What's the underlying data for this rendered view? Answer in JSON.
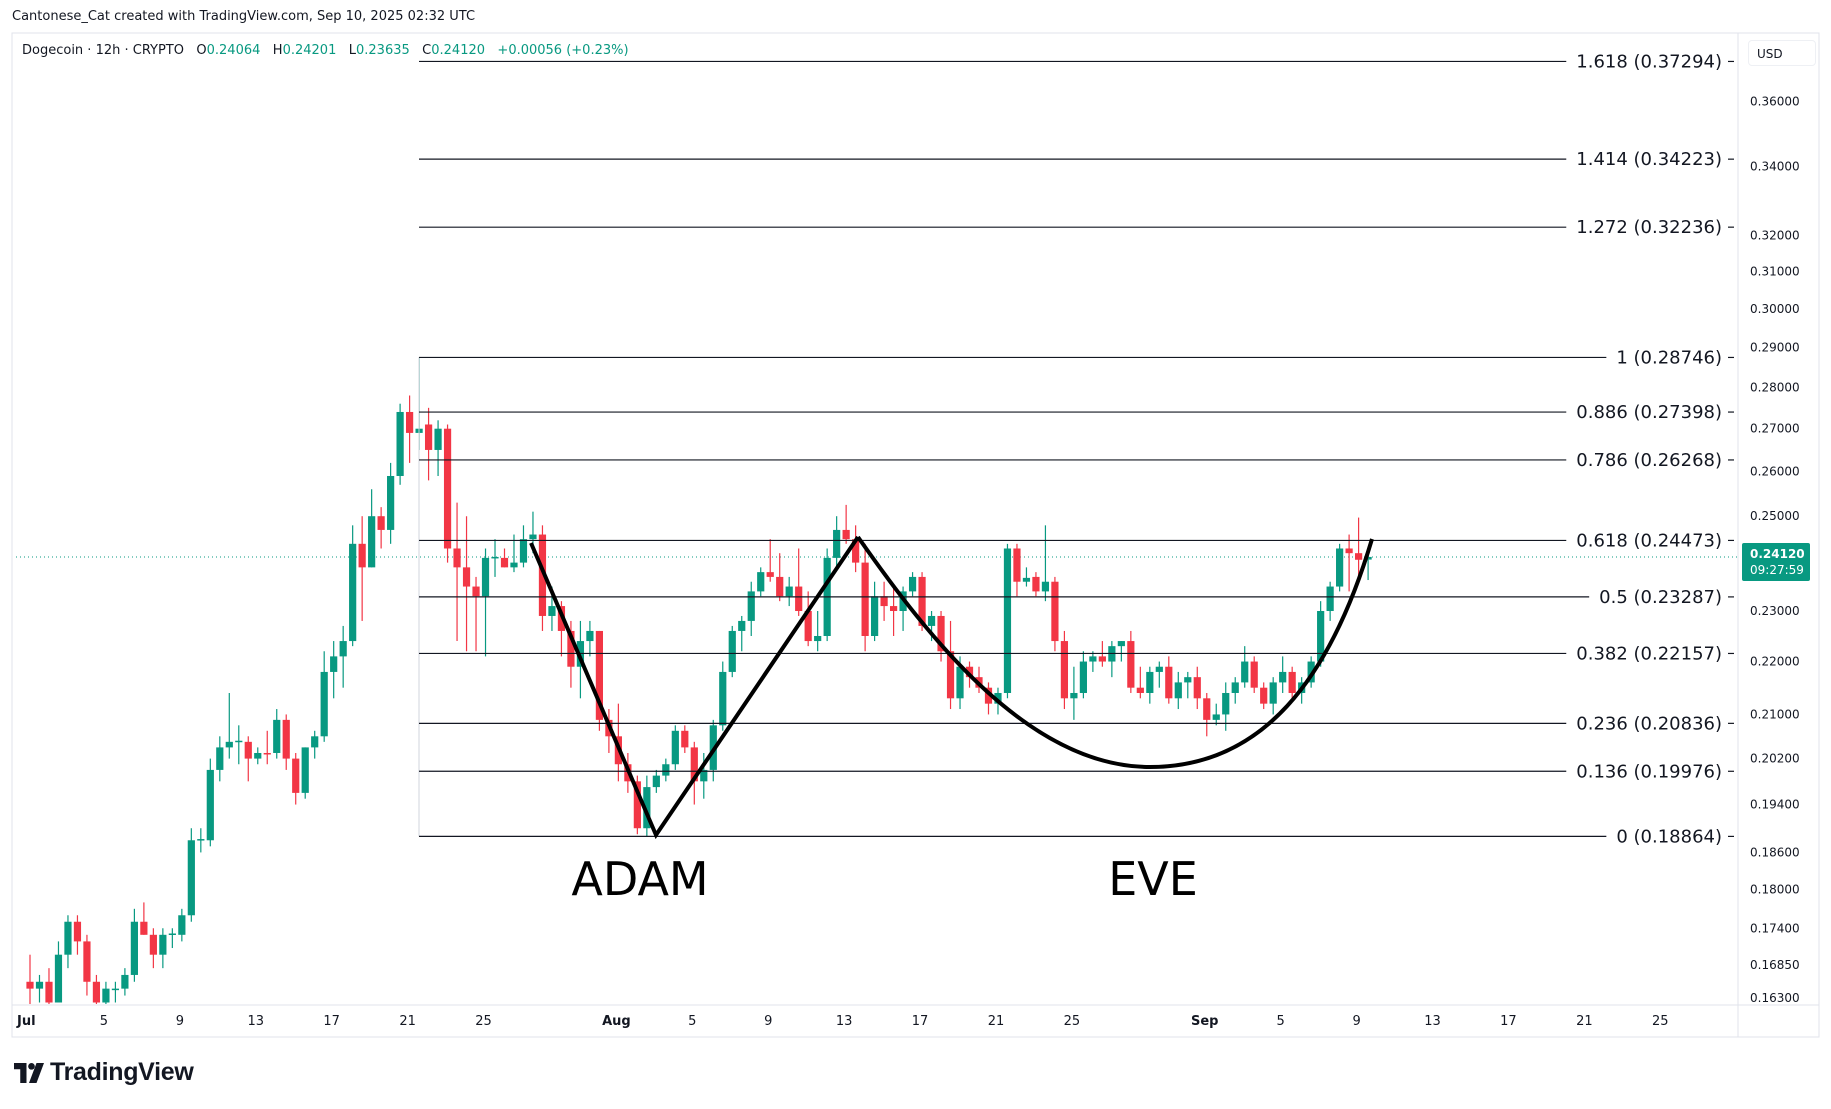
{
  "attribution": "Cantonese_Cat created with TradingView.com, Sep 10, 2025 02:32 UTC",
  "legend": {
    "symbol": "Dogecoin · 12h · CRYPTO",
    "o_label": "O",
    "o": "0.24064",
    "h_label": "H",
    "h": "0.24201",
    "l_label": "L",
    "l": "0.23635",
    "c_label": "C",
    "c": "0.24120",
    "change": "+0.00056 (+0.23%)"
  },
  "currency": "USD",
  "current_price": {
    "price": "0.24120",
    "countdown": "09:27:59",
    "value": 0.2412
  },
  "logo_text": "TradingView",
  "colors": {
    "up": "#089981",
    "down": "#f23645",
    "line": "#131722",
    "grid": "#e0e3eb"
  },
  "chart_data": {
    "type": "candlestick",
    "title": "Dogecoin · 12h · CRYPTO",
    "scale": "log",
    "ylim": [
      0.163,
      0.375
    ],
    "start_date": "Jul 1, 2025",
    "interval": "12h",
    "candles_ohlc": [
      [
        0.166,
        0.17,
        0.162,
        0.165
      ],
      [
        0.165,
        0.167,
        0.163,
        0.166
      ],
      [
        0.166,
        0.168,
        0.162,
        0.163
      ],
      [
        0.163,
        0.172,
        0.163,
        0.17
      ],
      [
        0.17,
        0.176,
        0.168,
        0.175
      ],
      [
        0.175,
        0.176,
        0.17,
        0.172
      ],
      [
        0.172,
        0.173,
        0.164,
        0.166
      ],
      [
        0.166,
        0.167,
        0.162,
        0.163
      ],
      [
        0.163,
        0.166,
        0.162,
        0.165
      ],
      [
        0.165,
        0.166,
        0.163,
        0.165
      ],
      [
        0.165,
        0.168,
        0.164,
        0.167
      ],
      [
        0.167,
        0.177,
        0.166,
        0.175
      ],
      [
        0.175,
        0.178,
        0.173,
        0.173
      ],
      [
        0.173,
        0.174,
        0.168,
        0.17
      ],
      [
        0.17,
        0.174,
        0.168,
        0.173
      ],
      [
        0.173,
        0.174,
        0.171,
        0.1732
      ],
      [
        0.173,
        0.177,
        0.172,
        0.176
      ],
      [
        0.176,
        0.19,
        0.175,
        0.188
      ],
      [
        0.188,
        0.19,
        0.186,
        0.1882
      ],
      [
        0.188,
        0.202,
        0.187,
        0.2
      ],
      [
        0.2,
        0.206,
        0.198,
        0.204
      ],
      [
        0.204,
        0.214,
        0.202,
        0.205
      ],
      [
        0.205,
        0.208,
        0.201,
        0.2052
      ],
      [
        0.205,
        0.206,
        0.198,
        0.202
      ],
      [
        0.202,
        0.204,
        0.201,
        0.203
      ],
      [
        0.203,
        0.207,
        0.201,
        0.2028
      ],
      [
        0.203,
        0.211,
        0.202,
        0.209
      ],
      [
        0.209,
        0.21,
        0.2,
        0.202
      ],
      [
        0.202,
        0.203,
        0.194,
        0.196
      ],
      [
        0.196,
        0.204,
        0.195,
        0.204
      ],
      [
        0.204,
        0.207,
        0.202,
        0.206
      ],
      [
        0.206,
        0.222,
        0.205,
        0.218
      ],
      [
        0.218,
        0.224,
        0.213,
        0.221
      ],
      [
        0.221,
        0.227,
        0.215,
        0.224
      ],
      [
        0.224,
        0.248,
        0.223,
        0.244
      ],
      [
        0.244,
        0.25,
        0.228,
        0.239
      ],
      [
        0.239,
        0.256,
        0.239,
        0.25
      ],
      [
        0.25,
        0.252,
        0.243,
        0.247
      ],
      [
        0.247,
        0.262,
        0.244,
        0.259
      ],
      [
        0.259,
        0.276,
        0.257,
        0.274
      ],
      [
        0.274,
        0.278,
        0.262,
        0.269
      ],
      [
        0.269,
        0.28746,
        0.265,
        0.27
      ],
      [
        0.271,
        0.275,
        0.258,
        0.265
      ],
      [
        0.265,
        0.272,
        0.259,
        0.27
      ],
      [
        0.27,
        0.271,
        0.24,
        0.243
      ],
      [
        0.243,
        0.253,
        0.224,
        0.239
      ],
      [
        0.239,
        0.25,
        0.222,
        0.235
      ],
      [
        0.235,
        0.237,
        0.222,
        0.233
      ],
      [
        0.233,
        0.243,
        0.221,
        0.241
      ],
      [
        0.241,
        0.245,
        0.237,
        0.2412
      ],
      [
        0.241,
        0.243,
        0.239,
        0.239
      ],
      [
        0.239,
        0.246,
        0.238,
        0.24
      ],
      [
        0.24,
        0.248,
        0.239,
        0.245
      ],
      [
        0.245,
        0.251,
        0.242,
        0.246
      ],
      [
        0.246,
        0.248,
        0.226,
        0.229
      ],
      [
        0.229,
        0.235,
        0.226,
        0.231
      ],
      [
        0.231,
        0.232,
        0.221,
        0.226
      ],
      [
        0.226,
        0.228,
        0.215,
        0.219
      ],
      [
        0.219,
        0.228,
        0.213,
        0.224
      ],
      [
        0.224,
        0.228,
        0.221,
        0.226
      ],
      [
        0.226,
        0.226,
        0.207,
        0.209
      ],
      [
        0.209,
        0.211,
        0.203,
        0.206
      ],
      [
        0.206,
        0.212,
        0.198,
        0.201
      ],
      [
        0.201,
        0.203,
        0.196,
        0.198
      ],
      [
        0.198,
        0.199,
        0.189,
        0.19
      ],
      [
        0.19,
        0.199,
        0.18864,
        0.197
      ],
      [
        0.197,
        0.2,
        0.196,
        0.199
      ],
      [
        0.199,
        0.202,
        0.198,
        0.201
      ],
      [
        0.201,
        0.208,
        0.2,
        0.207
      ],
      [
        0.207,
        0.208,
        0.203,
        0.204
      ],
      [
        0.204,
        0.205,
        0.194,
        0.198
      ],
      [
        0.198,
        0.203,
        0.195,
        0.2
      ],
      [
        0.2,
        0.209,
        0.198,
        0.208
      ],
      [
        0.208,
        0.22,
        0.207,
        0.218
      ],
      [
        0.218,
        0.227,
        0.217,
        0.226
      ],
      [
        0.226,
        0.229,
        0.222,
        0.228
      ],
      [
        0.228,
        0.236,
        0.225,
        0.234
      ],
      [
        0.234,
        0.239,
        0.233,
        0.238
      ],
      [
        0.238,
        0.245,
        0.236,
        0.237
      ],
      [
        0.237,
        0.242,
        0.232,
        0.233
      ],
      [
        0.233,
        0.237,
        0.231,
        0.235
      ],
      [
        0.235,
        0.243,
        0.229,
        0.23
      ],
      [
        0.23,
        0.234,
        0.223,
        0.224
      ],
      [
        0.224,
        0.23,
        0.222,
        0.225
      ],
      [
        0.225,
        0.243,
        0.224,
        0.241
      ],
      [
        0.241,
        0.25,
        0.239,
        0.247
      ],
      [
        0.247,
        0.2525,
        0.244,
        0.245
      ],
      [
        0.245,
        0.248,
        0.238,
        0.24
      ],
      [
        0.24,
        0.244,
        0.222,
        0.225
      ],
      [
        0.225,
        0.236,
        0.224,
        0.233
      ],
      [
        0.233,
        0.236,
        0.228,
        0.231
      ],
      [
        0.231,
        0.235,
        0.225,
        0.23
      ],
      [
        0.23,
        0.235,
        0.226,
        0.234
      ],
      [
        0.234,
        0.238,
        0.233,
        0.237
      ],
      [
        0.237,
        0.238,
        0.226,
        0.227
      ],
      [
        0.227,
        0.23,
        0.224,
        0.229
      ],
      [
        0.229,
        0.23,
        0.22,
        0.222
      ],
      [
        0.222,
        0.228,
        0.211,
        0.213
      ],
      [
        0.213,
        0.221,
        0.211,
        0.219
      ],
      [
        0.219,
        0.22,
        0.215,
        0.217
      ],
      [
        0.217,
        0.219,
        0.214,
        0.215
      ],
      [
        0.215,
        0.216,
        0.21,
        0.212
      ],
      [
        0.212,
        0.215,
        0.21,
        0.214
      ],
      [
        0.214,
        0.244,
        0.213,
        0.243
      ],
      [
        0.243,
        0.244,
        0.233,
        0.236
      ],
      [
        0.236,
        0.239,
        0.235,
        0.2368
      ],
      [
        0.237,
        0.238,
        0.233,
        0.234
      ],
      [
        0.234,
        0.248,
        0.232,
        0.236
      ],
      [
        0.236,
        0.237,
        0.222,
        0.224
      ],
      [
        0.224,
        0.226,
        0.211,
        0.213
      ],
      [
        0.213,
        0.219,
        0.209,
        0.214
      ],
      [
        0.214,
        0.222,
        0.213,
        0.22
      ],
      [
        0.22,
        0.222,
        0.218,
        0.221
      ],
      [
        0.221,
        0.224,
        0.219,
        0.22
      ],
      [
        0.22,
        0.224,
        0.217,
        0.223
      ],
      [
        0.223,
        0.224,
        0.22,
        0.224
      ],
      [
        0.224,
        0.226,
        0.214,
        0.215
      ],
      [
        0.215,
        0.219,
        0.213,
        0.214
      ],
      [
        0.214,
        0.219,
        0.212,
        0.218
      ],
      [
        0.218,
        0.22,
        0.215,
        0.219
      ],
      [
        0.219,
        0.221,
        0.212,
        0.213
      ],
      [
        0.213,
        0.218,
        0.211,
        0.216
      ],
      [
        0.216,
        0.218,
        0.213,
        0.217
      ],
      [
        0.217,
        0.219,
        0.211,
        0.213
      ],
      [
        0.213,
        0.214,
        0.206,
        0.209
      ],
      [
        0.209,
        0.212,
        0.208,
        0.21
      ],
      [
        0.21,
        0.216,
        0.207,
        0.214
      ],
      [
        0.214,
        0.217,
        0.212,
        0.216
      ],
      [
        0.216,
        0.223,
        0.215,
        0.22
      ],
      [
        0.22,
        0.221,
        0.214,
        0.215
      ],
      [
        0.215,
        0.216,
        0.211,
        0.212
      ],
      [
        0.212,
        0.217,
        0.21,
        0.216
      ],
      [
        0.216,
        0.221,
        0.214,
        0.218
      ],
      [
        0.218,
        0.219,
        0.213,
        0.214
      ],
      [
        0.214,
        0.217,
        0.212,
        0.216
      ],
      [
        0.216,
        0.221,
        0.215,
        0.22
      ],
      [
        0.22,
        0.232,
        0.219,
        0.23
      ],
      [
        0.23,
        0.236,
        0.228,
        0.235
      ],
      [
        0.235,
        0.244,
        0.234,
        0.243
      ],
      [
        0.243,
        0.246,
        0.234,
        0.242
      ],
      [
        0.242,
        0.2497,
        0.237,
        0.2406
      ],
      [
        0.24064,
        0.24201,
        0.23635,
        0.2412
      ]
    ],
    "y_ticks": [
      "0.36000",
      "0.34000",
      "0.32000",
      "0.31000",
      "0.30000",
      "0.29000",
      "0.28000",
      "0.27000",
      "0.26000",
      "0.25000",
      "0.23000",
      "0.22000",
      "0.21000",
      "0.20200",
      "0.19400",
      "0.18600",
      "0.18000",
      "0.17400",
      "0.16850",
      "0.16300"
    ],
    "x_ticks": [
      {
        "label": "Jul",
        "day": 0
      },
      {
        "label": "5",
        "day": 4
      },
      {
        "label": "9",
        "day": 8
      },
      {
        "label": "13",
        "day": 12
      },
      {
        "label": "17",
        "day": 16
      },
      {
        "label": "21",
        "day": 20
      },
      {
        "label": "25",
        "day": 24
      },
      {
        "label": "Aug",
        "day": 31
      },
      {
        "label": "5",
        "day": 35
      },
      {
        "label": "9",
        "day": 39
      },
      {
        "label": "13",
        "day": 43
      },
      {
        "label": "17",
        "day": 47
      },
      {
        "label": "21",
        "day": 51
      },
      {
        "label": "25",
        "day": 55
      },
      {
        "label": "Sep",
        "day": 62
      },
      {
        "label": "5",
        "day": 66
      },
      {
        "label": "9",
        "day": 70
      },
      {
        "label": "13",
        "day": 74
      },
      {
        "label": "17",
        "day": 78
      },
      {
        "label": "21",
        "day": 82
      },
      {
        "label": "25",
        "day": 86
      }
    ],
    "fib_levels": [
      {
        "ratio": "1.618",
        "price": "0.37294"
      },
      {
        "ratio": "1.414",
        "price": "0.34223"
      },
      {
        "ratio": "1.272",
        "price": "0.32236"
      },
      {
        "ratio": "1",
        "price": "0.28746"
      },
      {
        "ratio": "0.886",
        "price": "0.27398"
      },
      {
        "ratio": "0.786",
        "price": "0.26268"
      },
      {
        "ratio": "0.618",
        "price": "0.24473"
      },
      {
        "ratio": "0.5",
        "price": "0.23287"
      },
      {
        "ratio": "0.382",
        "price": "0.22157"
      },
      {
        "ratio": "0.236",
        "price": "0.20836"
      },
      {
        "ratio": "0.136",
        "price": "0.19976"
      },
      {
        "ratio": "0",
        "price": "0.18864"
      }
    ],
    "annotations": [
      {
        "text": "ADAM"
      },
      {
        "text": "EVE"
      }
    ]
  }
}
